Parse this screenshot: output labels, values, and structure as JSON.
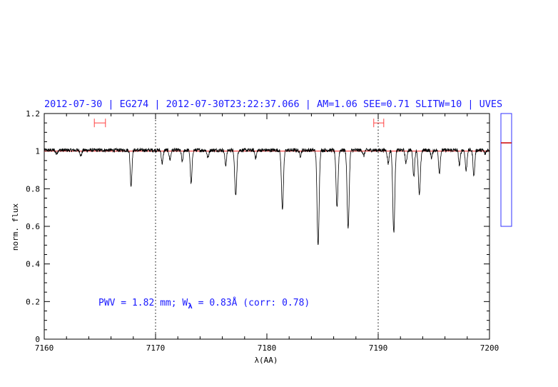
{
  "header": {
    "title": "2012-07-30 | EG274 | 2012-07-30T23:22:37.066 | AM=1.06  SEE=0.71  SLITW=10 | UVES"
  },
  "annotation": {
    "prefix": "PWV = 1.82 mm; W",
    "subscript": "λ",
    "suffix": " = 0.83Å (corr: 0.78)"
  },
  "colors": {
    "title": "#1a1aff",
    "spectrum": "#000000",
    "continuum": "#ff2020",
    "markers": "#ff4040",
    "side_box": "#3030ff",
    "side_marker": "#cc0000"
  },
  "chart_data": {
    "type": "line",
    "title": "2012-07-30 | EG274 | 2012-07-30T23:22:37.066 | AM=1.06  SEE=0.71  SLITW=10 | UVES",
    "xlabel": "λ(AA)",
    "ylabel": "norm. flux",
    "xlim": [
      7160,
      7200
    ],
    "ylim": [
      0,
      1.2
    ],
    "x_ticks": [
      7160,
      7170,
      7180,
      7190,
      7200
    ],
    "x_tick_labels": [
      "7160",
      "7170",
      "7180",
      "7190",
      "7200"
    ],
    "y_ticks": [
      0,
      0.2,
      0.4,
      0.6,
      0.8,
      1,
      1.2
    ],
    "y_tick_labels": [
      "0",
      "0.2",
      "0.4",
      "0.6",
      "0.8",
      "1",
      "1.2"
    ],
    "continuum_level": 1.0,
    "vertical_dotted_lines": [
      7170,
      7190
    ],
    "continuum_windows": [
      {
        "from": 7164.5,
        "to": 7165.5,
        "y": 1.15
      },
      {
        "from": 7189.6,
        "to": 7190.5,
        "y": 1.15
      }
    ],
    "absorption_lines": [
      {
        "x": 7161.1,
        "min_flux": 0.98
      },
      {
        "x": 7163.3,
        "min_flux": 0.97
      },
      {
        "x": 7167.8,
        "min_flux": 0.81
      },
      {
        "x": 7170.6,
        "min_flux": 0.93
      },
      {
        "x": 7171.3,
        "min_flux": 0.95
      },
      {
        "x": 7172.4,
        "min_flux": 0.94
      },
      {
        "x": 7173.2,
        "min_flux": 0.82
      },
      {
        "x": 7174.7,
        "min_flux": 0.96
      },
      {
        "x": 7176.3,
        "min_flux": 0.92
      },
      {
        "x": 7177.2,
        "min_flux": 0.76
      },
      {
        "x": 7179.0,
        "min_flux": 0.96
      },
      {
        "x": 7181.4,
        "min_flux": 0.69
      },
      {
        "x": 7183.0,
        "min_flux": 0.97
      },
      {
        "x": 7184.6,
        "min_flux": 0.49
      },
      {
        "x": 7186.3,
        "min_flux": 0.7
      },
      {
        "x": 7187.3,
        "min_flux": 0.58
      },
      {
        "x": 7188.7,
        "min_flux": 0.97
      },
      {
        "x": 7190.9,
        "min_flux": 0.93
      },
      {
        "x": 7191.4,
        "min_flux": 0.56
      },
      {
        "x": 7192.5,
        "min_flux": 0.93
      },
      {
        "x": 7193.2,
        "min_flux": 0.86
      },
      {
        "x": 7193.7,
        "min_flux": 0.76
      },
      {
        "x": 7194.8,
        "min_flux": 0.96
      },
      {
        "x": 7195.5,
        "min_flux": 0.88
      },
      {
        "x": 7197.3,
        "min_flux": 0.92
      },
      {
        "x": 7197.9,
        "min_flux": 0.89
      },
      {
        "x": 7198.6,
        "min_flux": 0.86
      },
      {
        "x": 7199.6,
        "min_flux": 0.98
      }
    ],
    "side_panel": {
      "indicator_fraction": 0.74
    },
    "grid": false,
    "legend": "none"
  }
}
